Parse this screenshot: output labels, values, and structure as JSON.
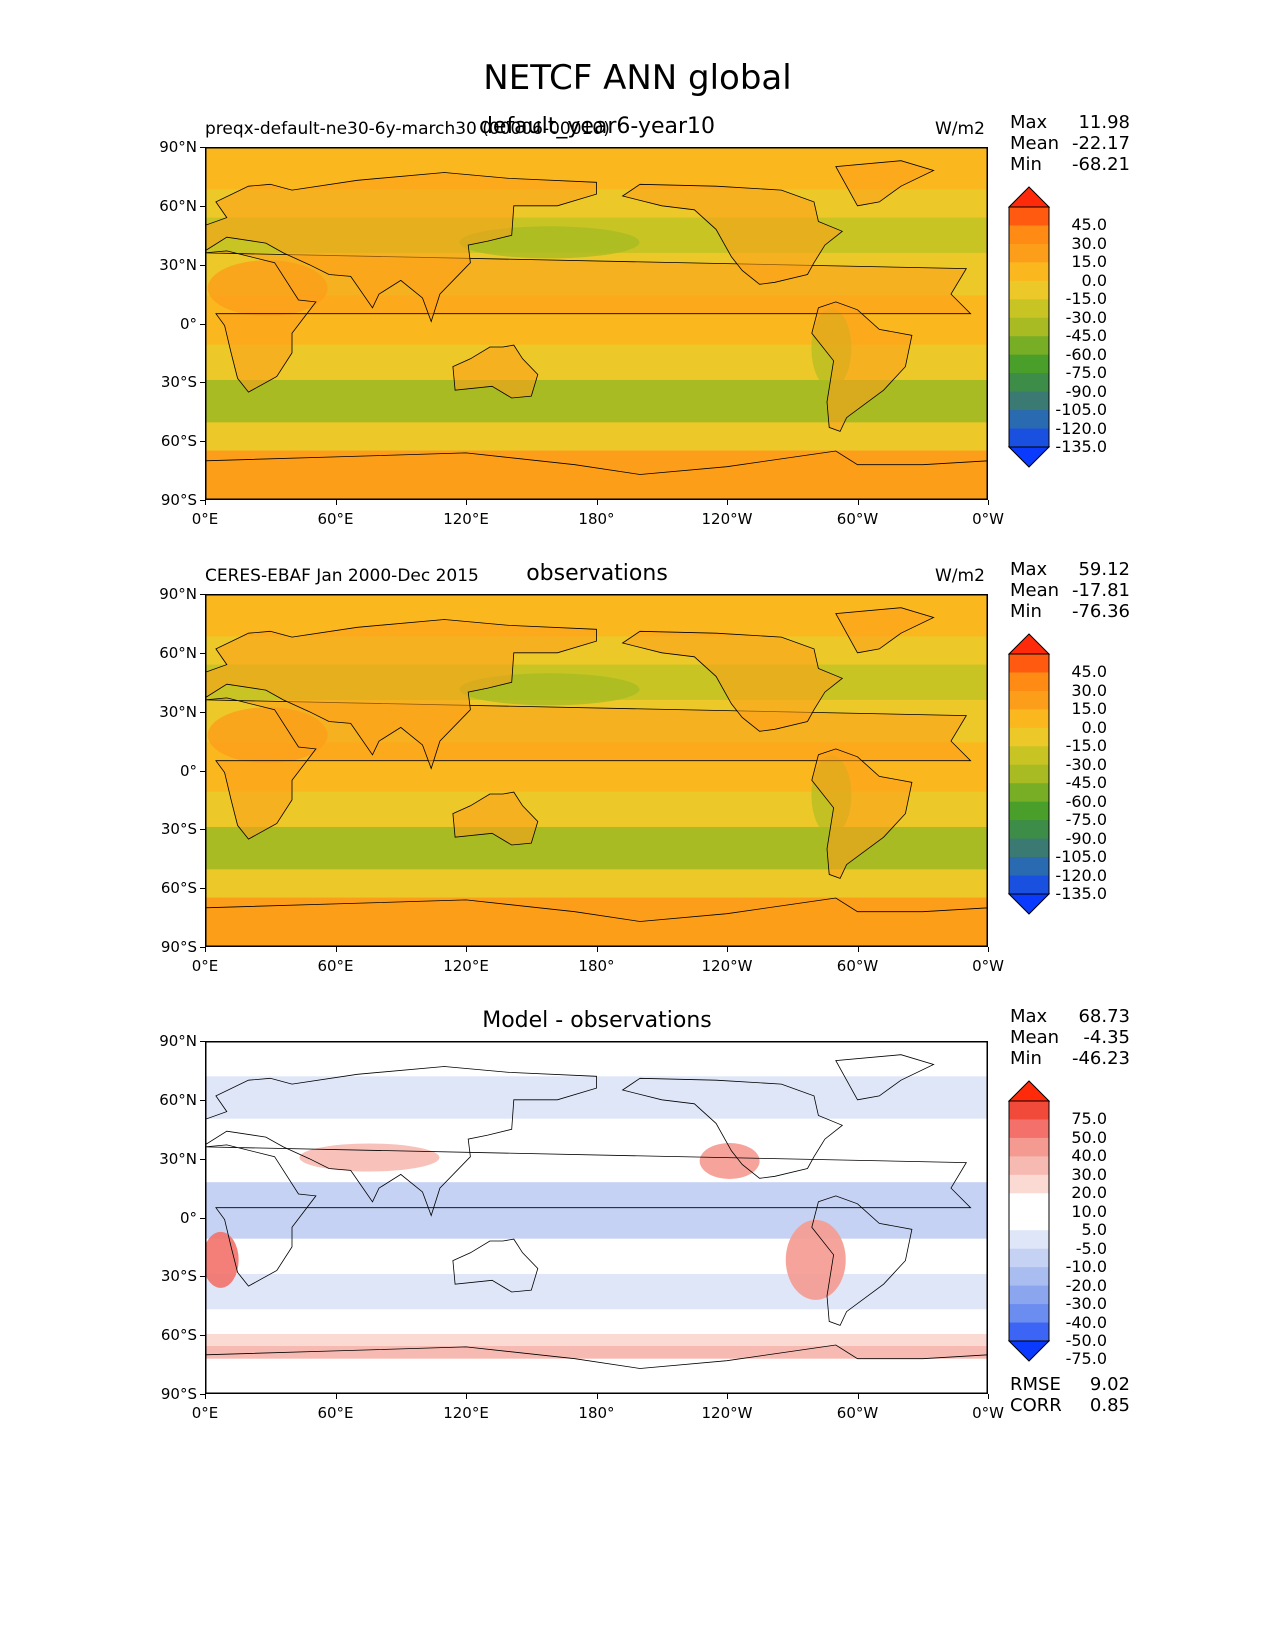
{
  "title": "NETCF ANN global",
  "axes": {
    "lat_ticks": [
      "90°N",
      "60°N",
      "30°N",
      "0°",
      "30°S",
      "60°S",
      "90°S"
    ],
    "lon_ticks": [
      "0°E",
      "60°E",
      "120°E",
      "180°",
      "120°W",
      "60°W",
      "0°W"
    ]
  },
  "panels": [
    {
      "left_label": "preqx-default-ne30-6y-march30 (00006-00010)",
      "center_label": "default_year6-year10",
      "unit": "W/m2",
      "stats": {
        "max_label": "Max",
        "max": "11.98",
        "mean_label": "Mean",
        "mean": "-22.17",
        "min_label": "Min",
        "min": "-68.21"
      },
      "colorbar_labels": [
        "45.0",
        "30.0",
        "15.0",
        "0.0",
        "-15.0",
        "-30.0",
        "-45.0",
        "-60.0",
        "-75.0",
        "-90.0",
        "-105.0",
        "-120.0",
        "-135.0"
      ]
    },
    {
      "left_label": "CERES-EBAF Jan 2000-Dec 2015",
      "center_label": "observations",
      "unit": "W/m2",
      "stats": {
        "max_label": "Max",
        "max": "59.12",
        "mean_label": "Mean",
        "mean": "-17.81",
        "min_label": "Min",
        "min": "-76.36"
      },
      "colorbar_labels": [
        "45.0",
        "30.0",
        "15.0",
        "0.0",
        "-15.0",
        "-30.0",
        "-45.0",
        "-60.0",
        "-75.0",
        "-90.0",
        "-105.0",
        "-120.0",
        "-135.0"
      ]
    },
    {
      "left_label": "",
      "center_label": "Model - observations",
      "unit": "",
      "stats": {
        "max_label": "Max",
        "max": "68.73",
        "mean_label": "Mean",
        "mean": "-4.35",
        "min_label": "Min",
        "min": "-46.23"
      },
      "colorbar_labels": [
        "75.0",
        "50.0",
        "40.0",
        "30.0",
        "20.0",
        "10.0",
        "5.0",
        "-5.0",
        "-10.0",
        "-20.0",
        "-30.0",
        "-40.0",
        "-50.0",
        "-75.0"
      ],
      "rmse_label": "RMSE",
      "rmse": "9.02",
      "corr_label": "CORR",
      "corr": "0.85"
    }
  ],
  "colors": {
    "field_scale": [
      "#ff2a0a",
      "#ff5a10",
      "#ff8a14",
      "#fd9e1a",
      "#fbb81e",
      "#ecc829",
      "#c8c424",
      "#a8bb22",
      "#78ad26",
      "#4a9f2a",
      "#3d8c48",
      "#3a7a72",
      "#2a6ab0",
      "#1a50e0",
      "#0b3aff"
    ],
    "diff_scale": [
      "#ff2a0a",
      "#f24a3a",
      "#f3716a",
      "#f59a90",
      "#f7bab2",
      "#fbdad4",
      "#ffffff",
      "#ffffff",
      "#dfe6f8",
      "#c6d2f3",
      "#a9bdf0",
      "#8ba6ee",
      "#6c8df0",
      "#3c65f5",
      "#0b3aff"
    ]
  }
}
